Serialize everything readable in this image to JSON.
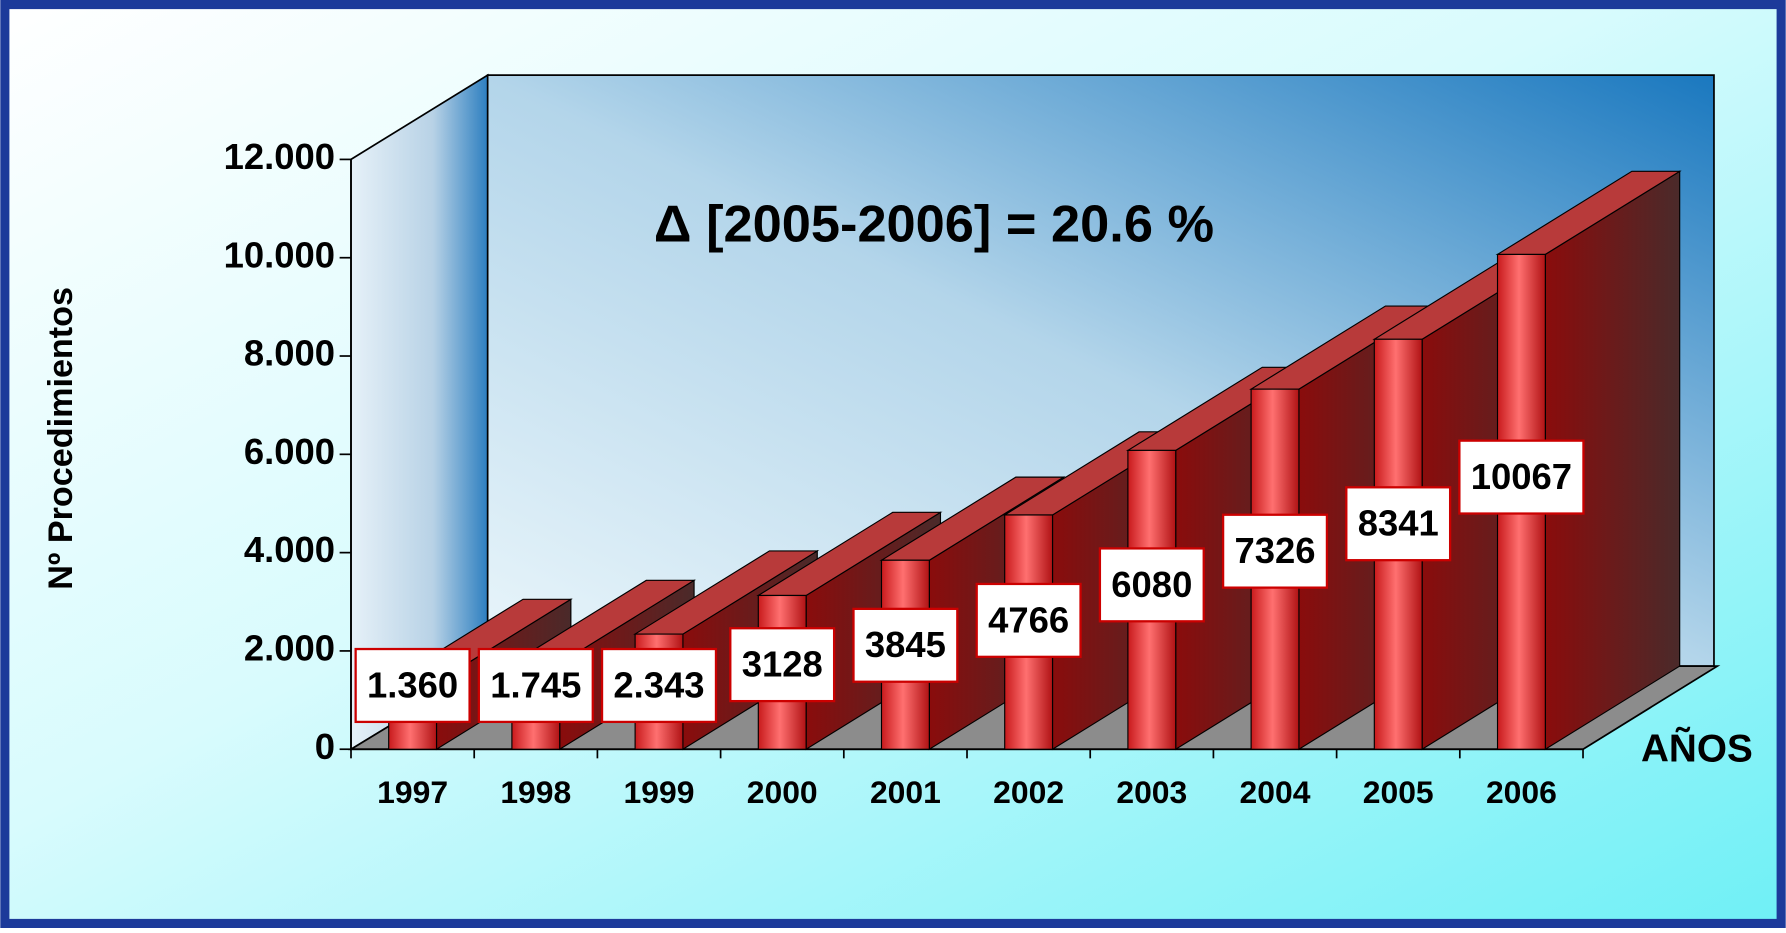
{
  "chart_data": {
    "type": "bar3d",
    "annotation": "Δ [2005-2006] = 20.6 %",
    "x_label": "AÑOS",
    "y_label": "Nº Procedimientos",
    "categories": [
      "1997",
      "1998",
      "1999",
      "2000",
      "2001",
      "2002",
      "2003",
      "2004",
      "2005",
      "2006"
    ],
    "values": [
      1360,
      1745,
      2343,
      3128,
      3845,
      4766,
      6080,
      7326,
      8341,
      10067
    ],
    "value_labels": [
      "1.360",
      "1.745",
      "2.343",
      "3128",
      "3845",
      "4766",
      "6080",
      "7326",
      "8341",
      "10067"
    ],
    "color": "#e8383a",
    "ylim": [
      0,
      12000
    ],
    "yticks": [
      0,
      {
        "value": 2000,
        "label": "2.000"
      },
      {
        "value": 4000,
        "label": "4.000"
      },
      {
        "value": 6000,
        "label": "6.000"
      },
      {
        "value": 8000,
        "label": "8.000"
      },
      {
        "value": 10000,
        "label": "10.000"
      },
      {
        "value": 12000,
        "label": "12.000"
      }
    ],
    "grid": false
  }
}
